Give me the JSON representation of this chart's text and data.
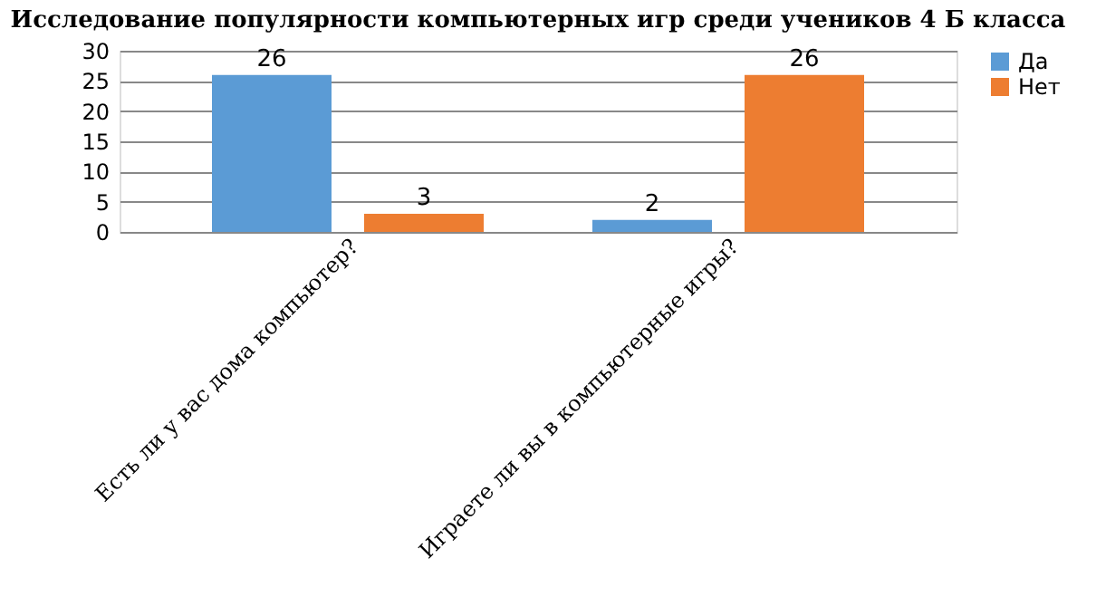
{
  "chart_data": {
    "type": "bar",
    "title": "Исследование популярности компьютерных игр среди учеников 4 Б класса",
    "categories": [
      "Есть ли у вас дома компьютер?",
      "Играете ли вы в компьютерные игры?"
    ],
    "series": [
      {
        "name": "Да",
        "color": "#5b9bd5",
        "values": [
          26,
          2
        ]
      },
      {
        "name": "Нет",
        "color": "#ed7d31",
        "values": [
          3,
          26
        ]
      }
    ],
    "ylim": [
      0,
      30
    ],
    "yticks": [
      0,
      5,
      10,
      15,
      20,
      25,
      30
    ],
    "grid": "y",
    "legend": "right",
    "data_labels": true
  }
}
